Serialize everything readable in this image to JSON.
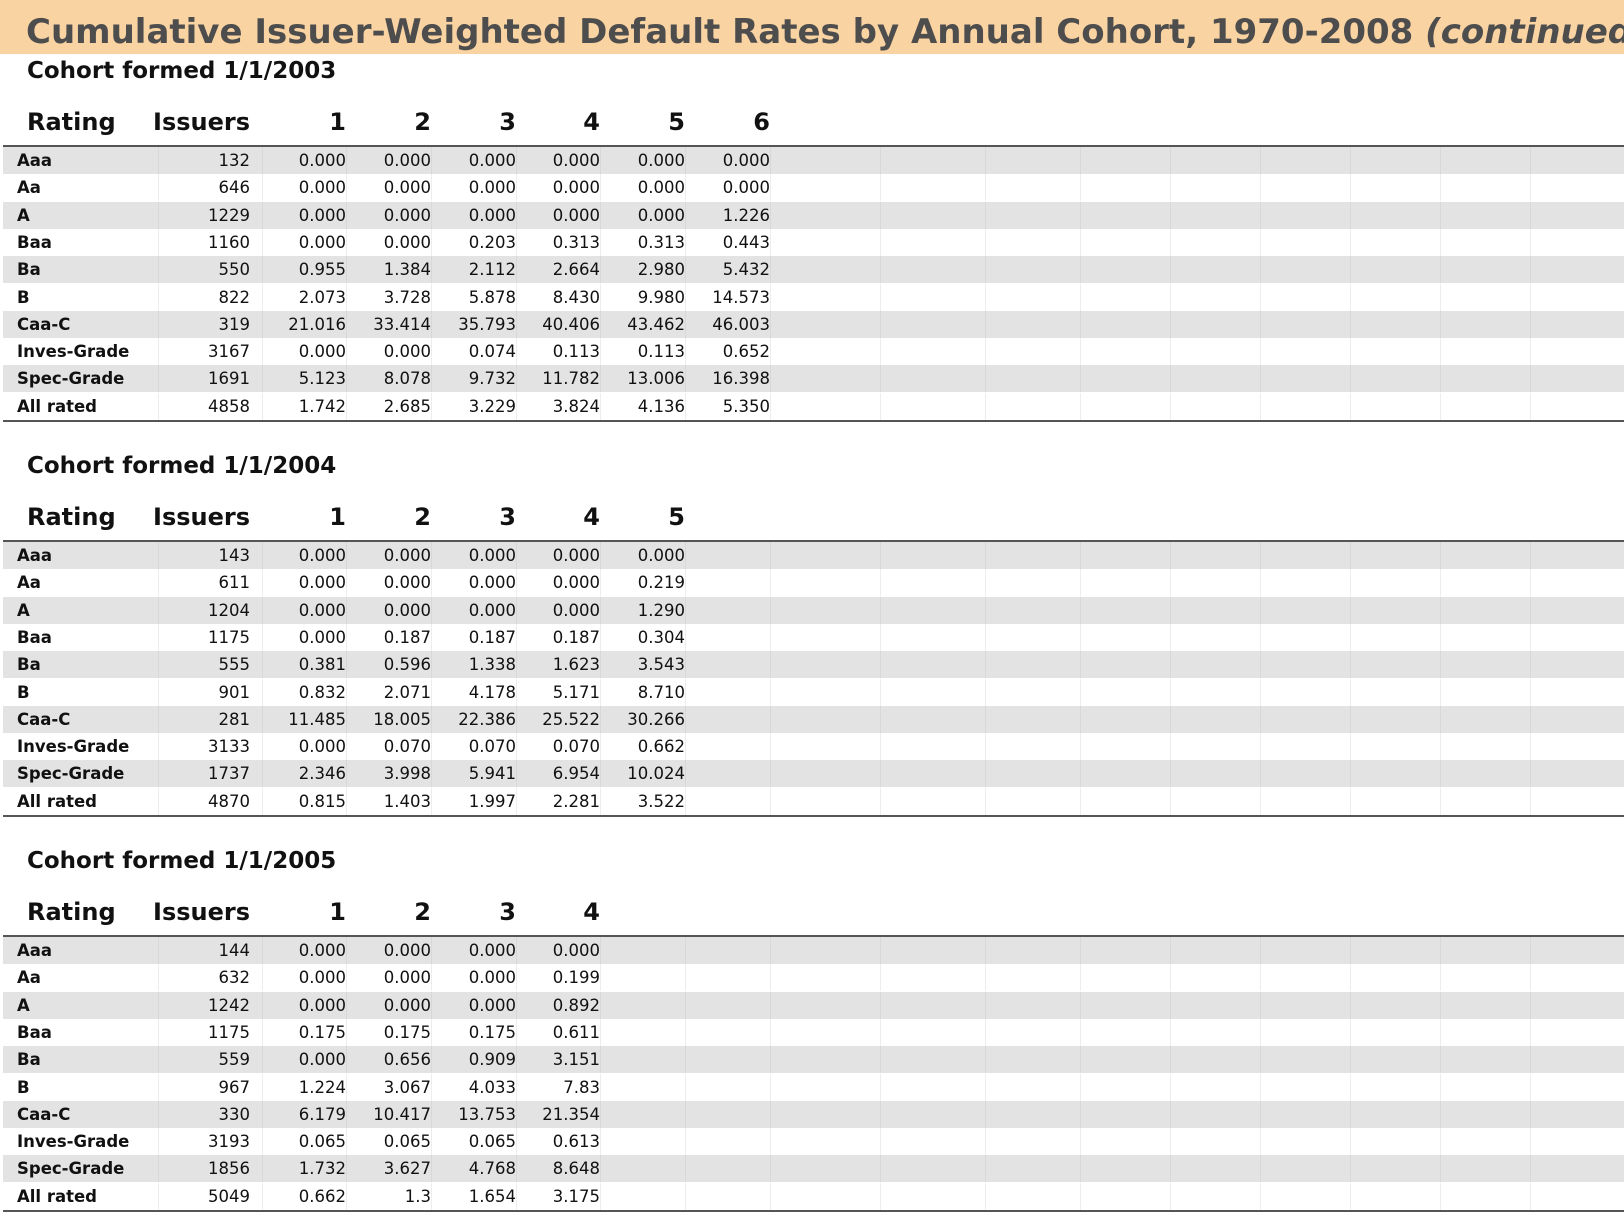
{
  "title": {
    "main": "Cumulative Issuer-Weighted Default Rates by Annual Cohort, 1970-2008 ",
    "suffix": "(continued)"
  },
  "columns_label": {
    "rating": "Rating",
    "issuers": "Issuers"
  },
  "cohorts": [
    {
      "title": "Cohort formed 1/1/2003",
      "years": [
        "1",
        "2",
        "3",
        "4",
        "5",
        "6"
      ],
      "rows": [
        {
          "rating": "Aaa",
          "issuers": "132",
          "values": [
            "0.000",
            "0.000",
            "0.000",
            "0.000",
            "0.000",
            "0.000"
          ]
        },
        {
          "rating": "Aa",
          "issuers": "646",
          "values": [
            "0.000",
            "0.000",
            "0.000",
            "0.000",
            "0.000",
            "0.000"
          ]
        },
        {
          "rating": "A",
          "issuers": "1229",
          "values": [
            "0.000",
            "0.000",
            "0.000",
            "0.000",
            "0.000",
            "1.226"
          ]
        },
        {
          "rating": "Baa",
          "issuers": "1160",
          "values": [
            "0.000",
            "0.000",
            "0.203",
            "0.313",
            "0.313",
            "0.443"
          ]
        },
        {
          "rating": "Ba",
          "issuers": "550",
          "values": [
            "0.955",
            "1.384",
            "2.112",
            "2.664",
            "2.980",
            "5.432"
          ]
        },
        {
          "rating": "B",
          "issuers": "822",
          "values": [
            "2.073",
            "3.728",
            "5.878",
            "8.430",
            "9.980",
            "14.573"
          ]
        },
        {
          "rating": "Caa-C",
          "issuers": "319",
          "values": [
            "21.016",
            "33.414",
            "35.793",
            "40.406",
            "43.462",
            "46.003"
          ]
        },
        {
          "rating": "Inves-Grade",
          "issuers": "3167",
          "values": [
            "0.000",
            "0.000",
            "0.074",
            "0.113",
            "0.113",
            "0.652"
          ]
        },
        {
          "rating": "Spec-Grade",
          "issuers": "1691",
          "values": [
            "5.123",
            "8.078",
            "9.732",
            "11.782",
            "13.006",
            "16.398"
          ]
        },
        {
          "rating": "All rated",
          "issuers": "4858",
          "values": [
            "1.742",
            "2.685",
            "3.229",
            "3.824",
            "4.136",
            "5.350"
          ]
        }
      ]
    },
    {
      "title": "Cohort formed 1/1/2004",
      "years": [
        "1",
        "2",
        "3",
        "4",
        "5"
      ],
      "rows": [
        {
          "rating": "Aaa",
          "issuers": "143",
          "values": [
            "0.000",
            "0.000",
            "0.000",
            "0.000",
            "0.000"
          ]
        },
        {
          "rating": "Aa",
          "issuers": "611",
          "values": [
            "0.000",
            "0.000",
            "0.000",
            "0.000",
            "0.219"
          ]
        },
        {
          "rating": "A",
          "issuers": "1204",
          "values": [
            "0.000",
            "0.000",
            "0.000",
            "0.000",
            "1.290"
          ]
        },
        {
          "rating": "Baa",
          "issuers": "1175",
          "values": [
            "0.000",
            "0.187",
            "0.187",
            "0.187",
            "0.304"
          ]
        },
        {
          "rating": "Ba",
          "issuers": "555",
          "values": [
            "0.381",
            "0.596",
            "1.338",
            "1.623",
            "3.543"
          ]
        },
        {
          "rating": "B",
          "issuers": "901",
          "values": [
            "0.832",
            "2.071",
            "4.178",
            "5.171",
            "8.710"
          ]
        },
        {
          "rating": "Caa-C",
          "issuers": "281",
          "values": [
            "11.485",
            "18.005",
            "22.386",
            "25.522",
            "30.266"
          ]
        },
        {
          "rating": "Inves-Grade",
          "issuers": "3133",
          "values": [
            "0.000",
            "0.070",
            "0.070",
            "0.070",
            "0.662"
          ]
        },
        {
          "rating": "Spec-Grade",
          "issuers": "1737",
          "values": [
            "2.346",
            "3.998",
            "5.941",
            "6.954",
            "10.024"
          ]
        },
        {
          "rating": "All rated",
          "issuers": "4870",
          "values": [
            "0.815",
            "1.403",
            "1.997",
            "2.281",
            "3.522"
          ]
        }
      ]
    },
    {
      "title": "Cohort formed 1/1/2005",
      "years": [
        "1",
        "2",
        "3",
        "4"
      ],
      "rows": [
        {
          "rating": "Aaa",
          "issuers": "144",
          "values": [
            "0.000",
            "0.000",
            "0.000",
            "0.000"
          ]
        },
        {
          "rating": "Aa",
          "issuers": "632",
          "values": [
            "0.000",
            "0.000",
            "0.000",
            "0.199"
          ]
        },
        {
          "rating": "A",
          "issuers": "1242",
          "values": [
            "0.000",
            "0.000",
            "0.000",
            "0.892"
          ]
        },
        {
          "rating": "Baa",
          "issuers": "1175",
          "values": [
            "0.175",
            "0.175",
            "0.175",
            "0.611"
          ]
        },
        {
          "rating": "Ba",
          "issuers": "559",
          "values": [
            "0.000",
            "0.656",
            "0.909",
            "3.151"
          ]
        },
        {
          "rating": "B",
          "issuers": "967",
          "values": [
            "1.224",
            "3.067",
            "4.033",
            "7.83"
          ]
        },
        {
          "rating": "Caa-C",
          "issuers": "330",
          "values": [
            "6.179",
            "10.417",
            "13.753",
            "21.354"
          ]
        },
        {
          "rating": "Inves-Grade",
          "issuers": "3193",
          "values": [
            "0.065",
            "0.065",
            "0.065",
            "0.613"
          ]
        },
        {
          "rating": "Spec-Grade",
          "issuers": "1856",
          "values": [
            "1.732",
            "3.627",
            "4.768",
            "8.648"
          ]
        },
        {
          "rating": "All rated",
          "issuers": "5049",
          "values": [
            "0.662",
            "1.3",
            "1.654",
            "3.175"
          ]
        }
      ]
    }
  ]
}
